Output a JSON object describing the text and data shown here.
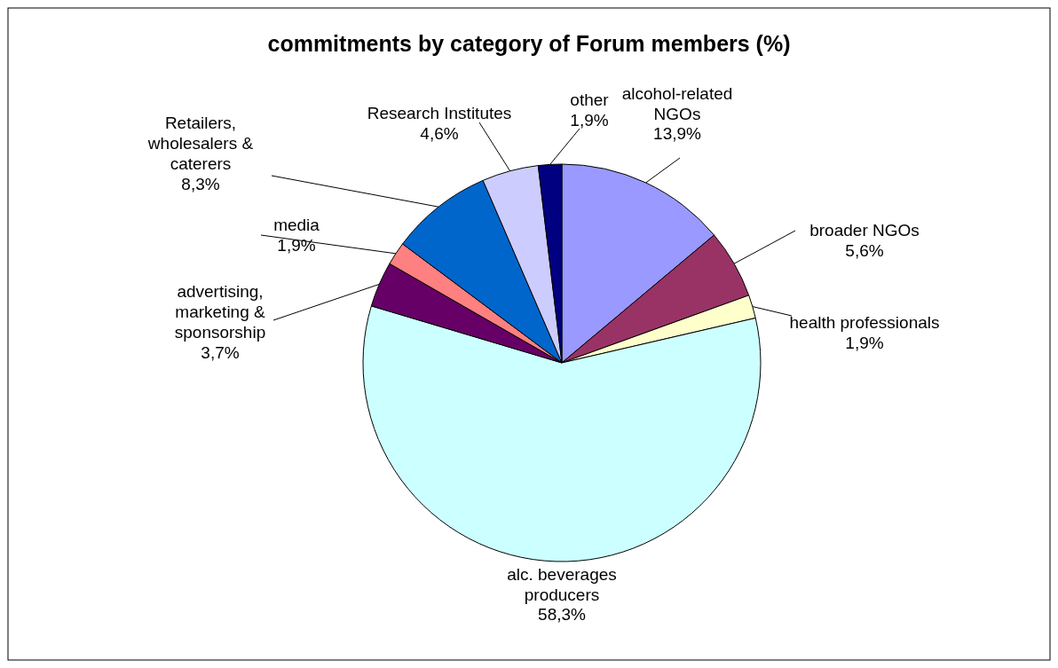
{
  "chart_data": {
    "type": "pie",
    "title": "commitments by category of Forum members (%)",
    "categories": [
      "alcohol-related\nNGOs",
      "broader NGOs",
      "health professionals",
      "alc. beverages\nproducers",
      "advertising,\nmarketing &\nsponsorship",
      "media",
      "Retailers,\nwholesalers &\ncaterers",
      "Research Institutes",
      "other"
    ],
    "values": [
      13.9,
      5.6,
      1.9,
      58.3,
      3.7,
      1.9,
      8.3,
      4.6,
      1.9
    ],
    "value_labels": [
      "13,9%",
      "5,6%",
      "1,9%",
      "58,3%",
      "3,7%",
      "1,9%",
      "8,3%",
      "4,6%",
      "1,9%"
    ],
    "colors": [
      "#9999ff",
      "#993366",
      "#ffffcc",
      "#ccffff",
      "#660066",
      "#ff8080",
      "#0066cc",
      "#ccccff",
      "#000080"
    ]
  }
}
